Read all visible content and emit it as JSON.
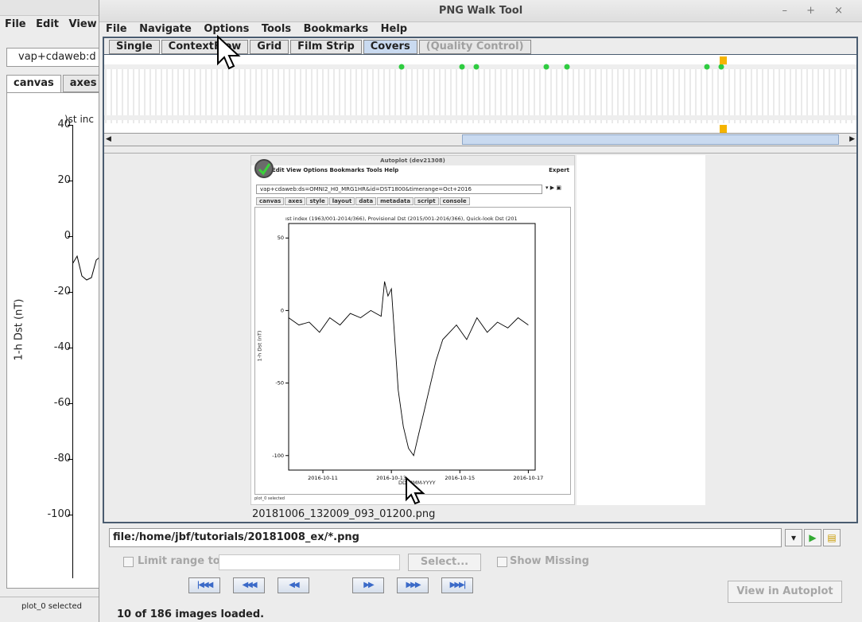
{
  "background_window": {
    "menu": [
      "File",
      "Edit",
      "View"
    ],
    "uri": "vap+cdaweb:d",
    "tabs": [
      "canvas",
      "axes"
    ],
    "plot_title_fragment": ")st inc",
    "ylabel": "1-h Dst (nT)",
    "yticks": [
      "40",
      "20",
      "0",
      "-20",
      "-40",
      "-60",
      "-80",
      "-100"
    ],
    "status": "plot_0 selected"
  },
  "window": {
    "title": "PNG Walk Tool",
    "controls": "– + ×"
  },
  "menu": [
    "File",
    "Navigate",
    "Options",
    "Tools",
    "Bookmarks",
    "Help"
  ],
  "view_tabs": [
    {
      "label": "Single",
      "state": "normal"
    },
    {
      "label": "ContextFlow",
      "state": "normal"
    },
    {
      "label": "Grid",
      "state": "normal"
    },
    {
      "label": "Film Strip",
      "state": "normal"
    },
    {
      "label": "Covers",
      "state": "active"
    },
    {
      "label": "(Quality Control)",
      "state": "disabled"
    }
  ],
  "thumbnail": {
    "title": "Autoplot (dev21308)",
    "menu": [
      "File",
      "Edit",
      "View",
      "Options",
      "Bookmarks",
      "Tools",
      "Help"
    ],
    "expert": "Expert",
    "uri": "vap+cdaweb:ds=OMNI2_H0_MRG1HR&id=DST1800&timerange=Oct+2016",
    "tabs": [
      "canvas",
      "axes",
      "style",
      "layout",
      "data",
      "metadata",
      "script",
      "console"
    ],
    "plot_title": "ıst index (1963/001-2014/366), Provisional Dst (2015/001-2016/366), Quick-look Dst (201",
    "ylabel": "1-h Dst (nT)",
    "xlabel": "DD-MMM-YYYY",
    "status": "plot_0 selected"
  },
  "chart_data": {
    "type": "line",
    "ylabel": "1-h Dst (nT)",
    "xlabel": "DD-MMM-YYYY",
    "ylim": [
      -110,
      60
    ],
    "yticks": [
      50,
      0,
      -50,
      -100
    ],
    "xticks": [
      "2016-10-11",
      "2016-10-13",
      "2016-10-15",
      "2016-10-17"
    ],
    "x": [
      10.0,
      10.3,
      10.6,
      10.9,
      11.2,
      11.5,
      11.8,
      12.1,
      12.4,
      12.7,
      12.8,
      12.9,
      13.0,
      13.1,
      13.2,
      13.35,
      13.5,
      13.65,
      13.8,
      13.95,
      14.1,
      14.3,
      14.5,
      14.7,
      14.9,
      15.2,
      15.5,
      15.8,
      16.1,
      16.4,
      16.7,
      17.0
    ],
    "y": [
      -5,
      -10,
      -8,
      -15,
      -5,
      -10,
      -2,
      -5,
      0,
      -4,
      20,
      10,
      15,
      -20,
      -55,
      -80,
      -95,
      -100,
      -85,
      -70,
      -55,
      -35,
      -20,
      -15,
      -10,
      -20,
      -5,
      -15,
      -8,
      -12,
      -5,
      -10
    ],
    "grid": false
  },
  "filename": "20181006_132009_093_01200.png",
  "url": "file:/home/jbf/tutorials/20181008_ex/*.png",
  "limit_label": "Limit range to:",
  "select_label": "Select...",
  "show_missing_label": "Show Missing",
  "nav_buttons": [
    "|◀◀◀",
    "◀◀◀",
    "◀◀",
    "▶▶",
    "▶▶▶",
    "▶▶▶|"
  ],
  "view_in_autoplot": "View in Autoplot",
  "status": "10 of 186 images loaded.",
  "colors": {
    "selected_tab": "#c9daf0",
    "marker_green": "#2ecc40",
    "marker_orange": "#f5b400"
  }
}
